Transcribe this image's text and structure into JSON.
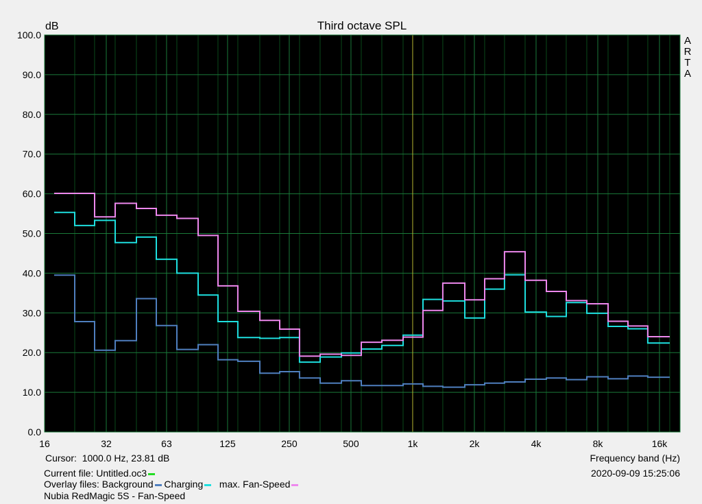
{
  "chart_data": {
    "type": "line",
    "title": "Third octave SPL",
    "ylabel": "dB",
    "xlabel": "Frequency band (Hz)",
    "ylim": [
      0,
      100
    ],
    "y_ticks": [
      "0.0",
      "10.0",
      "20.0",
      "30.0",
      "40.0",
      "50.0",
      "60.0",
      "70.0",
      "80.0",
      "90.0",
      "100.0"
    ],
    "x_ticks": [
      {
        "label": "16",
        "f": 16
      },
      {
        "label": "32",
        "f": 32
      },
      {
        "label": "63",
        "f": 63
      },
      {
        "label": "125",
        "f": 125
      },
      {
        "label": "250",
        "f": 250
      },
      {
        "label": "500",
        "f": 500
      },
      {
        "label": "1k",
        "f": 1000
      },
      {
        "label": "2k",
        "f": 2000
      },
      {
        "label": "4k",
        "f": 4000
      },
      {
        "label": "8k",
        "f": 8000
      },
      {
        "label": "16k",
        "f": 16000
      }
    ],
    "x_scale": "log",
    "bands_hz": [
      20,
      25,
      31.5,
      40,
      50,
      63,
      80,
      100,
      125,
      160,
      200,
      250,
      315,
      400,
      500,
      630,
      800,
      1000,
      1250,
      1600,
      2000,
      2500,
      3150,
      4000,
      5000,
      6300,
      8000,
      10000,
      12500,
      16000
    ],
    "grid": true,
    "series": [
      {
        "name": "Background",
        "color": "#4f7fbf",
        "values": [
          39.5,
          27.8,
          20.6,
          23.0,
          33.6,
          26.8,
          20.8,
          22.0,
          18.2,
          17.8,
          14.8,
          15.2,
          13.6,
          12.3,
          12.9,
          11.7,
          11.7,
          12.1,
          11.5,
          11.3,
          11.9,
          12.3,
          12.6,
          13.3,
          13.6,
          13.2,
          13.9,
          13.4,
          14.1,
          13.8
        ]
      },
      {
        "name": "Charging",
        "color": "#1ee0e0",
        "values": [
          55.3,
          52.0,
          53.3,
          47.7,
          49.1,
          43.5,
          40.0,
          34.5,
          27.8,
          23.8,
          23.6,
          23.8,
          17.6,
          18.9,
          19.9,
          20.9,
          21.8,
          24.4,
          33.4,
          33.0,
          28.7,
          36.0,
          39.6,
          30.2,
          29.1,
          32.6,
          29.9,
          26.6,
          26.0,
          22.4
        ]
      },
      {
        "name": "max. Fan-Speed",
        "color": "#ee88ee",
        "values": [
          60.1,
          60.1,
          54.2,
          57.6,
          56.3,
          54.6,
          53.8,
          49.5,
          36.8,
          30.4,
          28.1,
          25.9,
          19.1,
          19.6,
          19.3,
          22.6,
          23.1,
          23.9,
          30.6,
          37.5,
          33.3,
          38.6,
          45.4,
          38.2,
          35.4,
          33.1,
          32.3,
          27.9,
          26.7,
          24.0
        ]
      }
    ]
  },
  "side_label": [
    "A",
    "R",
    "T",
    "A"
  ],
  "footer": {
    "cursor_label": "Cursor:",
    "cursor_value": "1000.0 Hz, 23.81 dB",
    "xaxis_label": "Frequency band (Hz)",
    "current_file_label": "Current file: Untitled.oc3",
    "current_file_color": "#22dd22",
    "timestamp": "2020-09-09  15:25:06",
    "overlay_prefix": "Overlay files: Background",
    "overlay_charging": "Charging",
    "overlay_fan": "max. Fan-Speed",
    "device_name": "Nubia RedMagic 5S - Fan-Speed"
  }
}
